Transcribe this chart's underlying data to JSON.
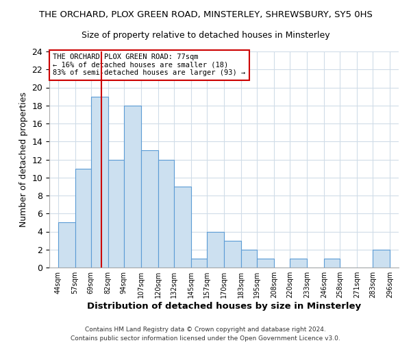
{
  "title": "THE ORCHARD, PLOX GREEN ROAD, MINSTERLEY, SHREWSBURY, SY5 0HS",
  "subtitle": "Size of property relative to detached houses in Minsterley",
  "xlabel": "Distribution of detached houses by size in Minsterley",
  "ylabel": "Number of detached properties",
  "bin_edges": [
    44,
    57,
    69,
    82,
    94,
    107,
    120,
    132,
    145,
    157,
    170,
    183,
    195,
    208,
    220,
    233,
    246,
    258,
    271,
    283,
    296
  ],
  "bin_labels": [
    "44sqm",
    "57sqm",
    "69sqm",
    "82sqm",
    "94sqm",
    "107sqm",
    "120sqm",
    "132sqm",
    "145sqm",
    "157sqm",
    "170sqm",
    "183sqm",
    "195sqm",
    "208sqm",
    "220sqm",
    "233sqm",
    "246sqm",
    "258sqm",
    "271sqm",
    "283sqm",
    "296sqm"
  ],
  "counts": [
    5,
    11,
    19,
    12,
    18,
    13,
    12,
    9,
    1,
    4,
    3,
    2,
    1,
    0,
    1,
    0,
    1,
    0,
    0,
    2
  ],
  "bar_facecolor": "#cce0f0",
  "bar_edgecolor": "#5b9bd5",
  "vline_x": 77,
  "vline_color": "#cc0000",
  "ylim": [
    0,
    24
  ],
  "yticks": [
    0,
    2,
    4,
    6,
    8,
    10,
    12,
    14,
    16,
    18,
    20,
    22,
    24
  ],
  "annotation_text": "THE ORCHARD PLOX GREEN ROAD: 77sqm\n← 16% of detached houses are smaller (18)\n83% of semi-detached houses are larger (93) →",
  "annotation_box_edgecolor": "#cc0000",
  "annotation_box_facecolor": "#ffffff",
  "footer1": "Contains HM Land Registry data © Crown copyright and database right 2024.",
  "footer2": "Contains public sector information licensed under the Open Government Licence v3.0.",
  "bg_color": "#ffffff",
  "grid_color": "#d0dce8"
}
